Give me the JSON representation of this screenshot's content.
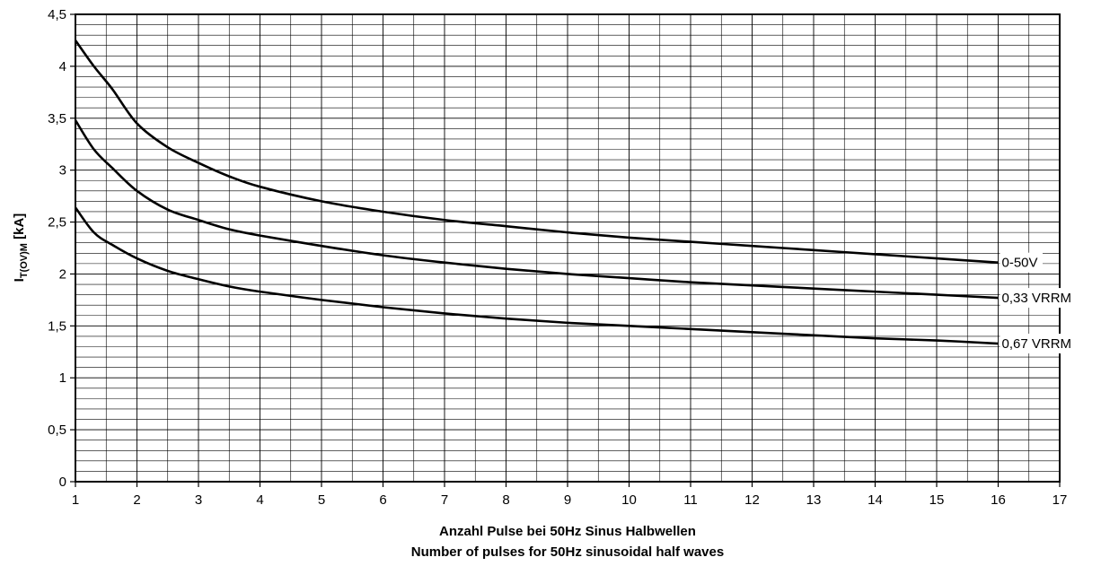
{
  "chart_data": {
    "type": "line",
    "xlabel_lines": [
      "Anzahl Pulse bei 50Hz Sinus Halbwellen",
      "Number of pulses for 50Hz sinusoidal half waves"
    ],
    "ylabel": {
      "main": "I",
      "sub": "T(OV)M",
      "unit": " [kA]"
    },
    "xlim": [
      1,
      17
    ],
    "ylim": [
      0,
      4.5
    ],
    "x_ticks": [
      1,
      2,
      3,
      4,
      5,
      6,
      7,
      8,
      9,
      10,
      11,
      12,
      13,
      14,
      15,
      16,
      17
    ],
    "x_tick_labels": [
      "1",
      "2",
      "3",
      "4",
      "5",
      "6",
      "7",
      "8",
      "9",
      "10",
      "11",
      "12",
      "13",
      "14",
      "15",
      "16",
      "17"
    ],
    "y_ticks": [
      0,
      0.5,
      1,
      1.5,
      2,
      2.5,
      3,
      3.5,
      4,
      4.5
    ],
    "y_tick_labels": [
      "0",
      "0,5",
      "1",
      "1,5",
      "2",
      "2,5",
      "3",
      "3,5",
      "4",
      "4,5"
    ],
    "grid": true,
    "x_minor_per_major": 2,
    "y_minor_per_major": 5,
    "line_color": "#000000",
    "series": [
      {
        "name": "0-50V",
        "points": [
          [
            1,
            4.25
          ],
          [
            1.3,
            4.0
          ],
          [
            1.6,
            3.78
          ],
          [
            2,
            3.45
          ],
          [
            2.5,
            3.22
          ],
          [
            3,
            3.07
          ],
          [
            3.5,
            2.94
          ],
          [
            4,
            2.84
          ],
          [
            5,
            2.7
          ],
          [
            6,
            2.6
          ],
          [
            7,
            2.52
          ],
          [
            8,
            2.46
          ],
          [
            9,
            2.4
          ],
          [
            10,
            2.35
          ],
          [
            11,
            2.31
          ],
          [
            12,
            2.27
          ],
          [
            13,
            2.23
          ],
          [
            14,
            2.19
          ],
          [
            15,
            2.15
          ],
          [
            16,
            2.11
          ]
        ]
      },
      {
        "name": "0,33 VRRM",
        "points": [
          [
            1,
            3.48
          ],
          [
            1.3,
            3.2
          ],
          [
            1.6,
            3.02
          ],
          [
            2,
            2.8
          ],
          [
            2.5,
            2.62
          ],
          [
            3,
            2.52
          ],
          [
            3.5,
            2.43
          ],
          [
            4,
            2.37
          ],
          [
            5,
            2.27
          ],
          [
            6,
            2.18
          ],
          [
            7,
            2.11
          ],
          [
            8,
            2.05
          ],
          [
            9,
            2.0
          ],
          [
            10,
            1.96
          ],
          [
            11,
            1.92
          ],
          [
            12,
            1.89
          ],
          [
            13,
            1.86
          ],
          [
            14,
            1.83
          ],
          [
            15,
            1.8
          ],
          [
            16,
            1.77
          ]
        ]
      },
      {
        "name": "0,67 VRRM",
        "points": [
          [
            1,
            2.64
          ],
          [
            1.3,
            2.4
          ],
          [
            1.6,
            2.28
          ],
          [
            2,
            2.15
          ],
          [
            2.5,
            2.03
          ],
          [
            3,
            1.95
          ],
          [
            3.5,
            1.88
          ],
          [
            4,
            1.83
          ],
          [
            5,
            1.75
          ],
          [
            6,
            1.68
          ],
          [
            7,
            1.62
          ],
          [
            8,
            1.57
          ],
          [
            9,
            1.53
          ],
          [
            10,
            1.5
          ],
          [
            11,
            1.47
          ],
          [
            12,
            1.44
          ],
          [
            13,
            1.41
          ],
          [
            14,
            1.38
          ],
          [
            15,
            1.36
          ],
          [
            16,
            1.33
          ]
        ]
      }
    ]
  }
}
